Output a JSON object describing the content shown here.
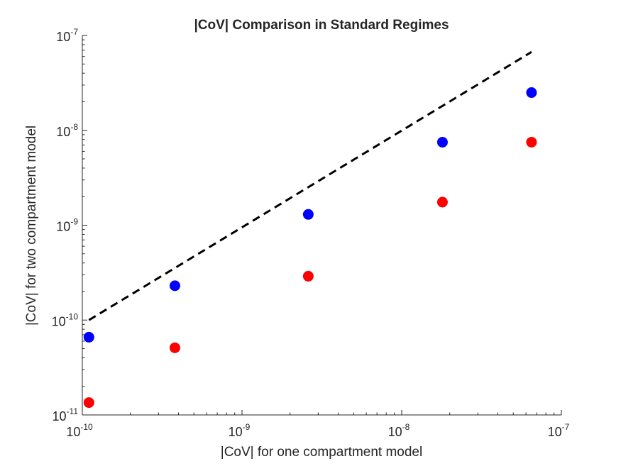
{
  "chart_data": {
    "type": "scatter",
    "title": "|CoV| Comparison in Standard Regimes",
    "xlabel": "|CoV| for one compartment model",
    "ylabel": "|CoV| for two compartment model",
    "xscale": "log",
    "yscale": "log",
    "xlim": [
      1e-10,
      1e-07
    ],
    "ylim": [
      1e-11,
      1e-07
    ],
    "x_ticks": [
      {
        "value": 1e-10,
        "base": "10",
        "exp": "-10"
      },
      {
        "value": 1e-09,
        "base": "10",
        "exp": "-9"
      },
      {
        "value": 1e-08,
        "base": "10",
        "exp": "-8"
      },
      {
        "value": 1e-07,
        "base": "10",
        "exp": "-7"
      }
    ],
    "y_ticks": [
      {
        "value": 1e-11,
        "base": "10",
        "exp": "-11"
      },
      {
        "value": 1e-10,
        "base": "10",
        "exp": "-10"
      },
      {
        "value": 1e-09,
        "base": "10",
        "exp": "-9"
      },
      {
        "value": 1e-08,
        "base": "10",
        "exp": "-8"
      },
      {
        "value": 1e-07,
        "base": "10",
        "exp": "-7"
      }
    ],
    "grid": false,
    "series": [
      {
        "color": "#0000ff",
        "marker": "circle",
        "x": [
          1.1e-10,
          3.8e-10,
          2.6e-09,
          1.8e-08,
          6.5e-08
        ],
        "y": [
          6.6e-11,
          2.3e-10,
          1.3e-09,
          7.5e-09,
          2.5e-08
        ]
      },
      {
        "color": "#ff0000",
        "marker": "circle",
        "x": [
          1.1e-10,
          3.8e-10,
          2.6e-09,
          1.8e-08,
          6.5e-08
        ],
        "y": [
          1.35e-11,
          5.1e-11,
          2.9e-10,
          1.75e-09,
          7.5e-09
        ]
      }
    ],
    "reference_line": {
      "style": "dashed",
      "color": "#000000",
      "x": [
        1.1e-10,
        6.5e-08
      ],
      "y": [
        1e-10,
        6.7e-08
      ]
    }
  }
}
